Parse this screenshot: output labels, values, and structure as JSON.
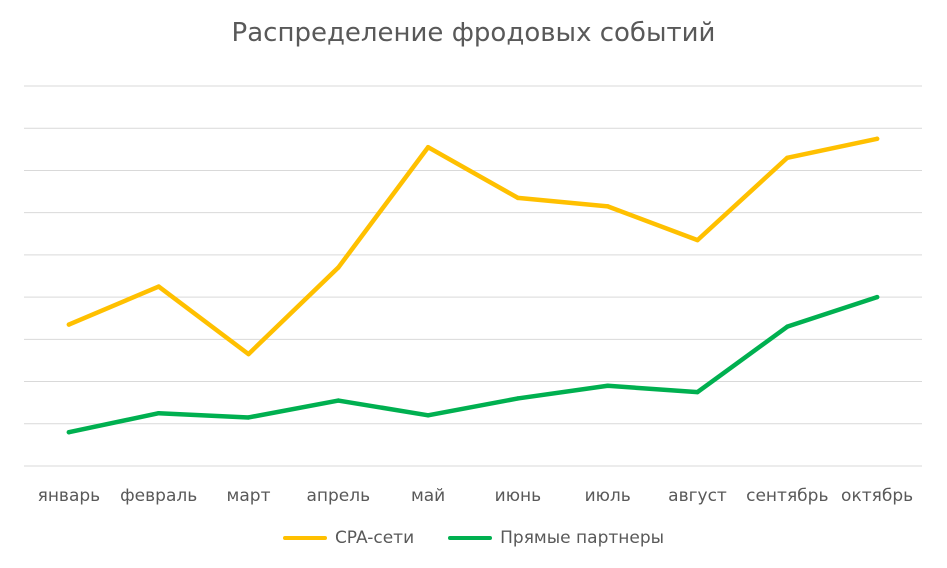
{
  "chart_data": {
    "type": "line",
    "title": "Распределение фродовых событий",
    "categories": [
      "январь",
      "февраль",
      "март",
      "апрель",
      "май",
      "июнь",
      "июль",
      "август",
      "сентябрь",
      "октябрь"
    ],
    "series": [
      {
        "name": "CPA-сети",
        "color": "#FFC000",
        "values": [
          33.5,
          42.5,
          26.5,
          47,
          75.5,
          63.5,
          61.5,
          53.5,
          73,
          77.5
        ]
      },
      {
        "name": "Прямые партнеры",
        "color": "#00B050",
        "values": [
          8,
          12.5,
          11.5,
          15.5,
          12,
          16,
          19,
          17.5,
          33,
          40
        ]
      }
    ],
    "ylim": [
      0,
      90
    ],
    "grid": true,
    "legend": "bottom"
  }
}
